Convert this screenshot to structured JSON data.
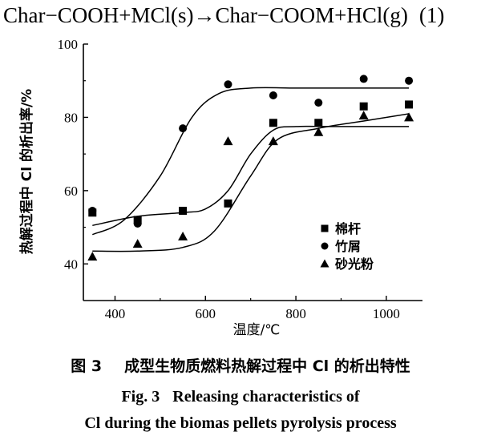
{
  "equation": {
    "text": "Char−COOH+MCl(s)→Char−COOM+HCl(g)",
    "number": "(1)"
  },
  "caption": {
    "zh_number": "图 3",
    "zh_text": "成型生物质燃料热解过程中 Cl 的析出特性",
    "en_number": "Fig. 3",
    "en_line1": "Releasing characteristics of",
    "en_line2": "Cl during the biomas pellets pyrolysis process"
  },
  "chart_data": {
    "type": "scatter",
    "xlabel": "温度/℃",
    "ylabel": "热解过程中 Cl 的析出率/%",
    "xlim": [
      330,
      1080
    ],
    "ylim": [
      30,
      100
    ],
    "xticks": [
      400,
      600,
      800,
      1000
    ],
    "yticks": [
      40,
      60,
      80,
      100
    ],
    "legend_position": "lower-right",
    "grid": false,
    "x": [
      350,
      450,
      550,
      650,
      750,
      850,
      950,
      1050
    ],
    "series": [
      {
        "name": "棉杆",
        "marker": "square",
        "values": [
          54,
          52,
          54.5,
          56.5,
          78.5,
          78.5,
          83,
          83.5
        ],
        "fit_curve": [
          [
            350,
            50.5
          ],
          [
            450,
            53
          ],
          [
            550,
            54
          ],
          [
            600,
            55
          ],
          [
            650,
            60
          ],
          [
            700,
            70
          ],
          [
            750,
            76.5
          ],
          [
            800,
            77.5
          ],
          [
            900,
            77.5
          ],
          [
            1050,
            77.5
          ]
        ]
      },
      {
        "name": "竹屑",
        "marker": "circle",
        "values": [
          54.5,
          51,
          77,
          89,
          86,
          84,
          90.5,
          90
        ],
        "fit_curve": [
          [
            350,
            48
          ],
          [
            420,
            52
          ],
          [
            500,
            64
          ],
          [
            570,
            80
          ],
          [
            630,
            86.5
          ],
          [
            700,
            88
          ],
          [
            800,
            88
          ],
          [
            900,
            88
          ],
          [
            1050,
            88
          ]
        ]
      },
      {
        "name": "砂光粉",
        "marker": "triangle",
        "values": [
          42,
          45.5,
          47.5,
          73.5,
          73.5,
          76,
          80.5,
          80
        ],
        "fit_curve": [
          [
            350,
            43.5
          ],
          [
            450,
            43.5
          ],
          [
            550,
            44.5
          ],
          [
            620,
            49
          ],
          [
            700,
            64
          ],
          [
            760,
            74
          ],
          [
            850,
            77
          ],
          [
            950,
            79
          ],
          [
            1050,
            81
          ]
        ]
      }
    ]
  }
}
